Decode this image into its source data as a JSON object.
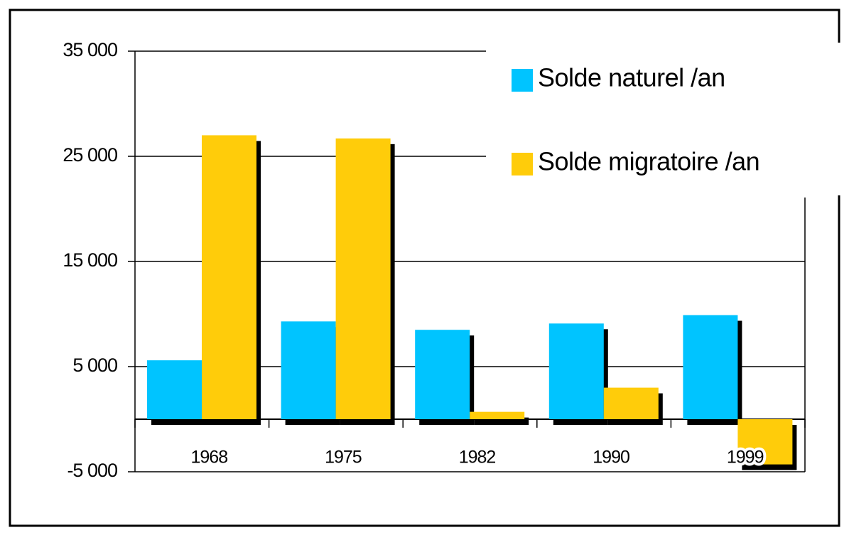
{
  "chart_data": {
    "type": "bar",
    "categories": [
      "1968",
      "1975",
      "1982",
      "1990",
      "1999"
    ],
    "series": [
      {
        "name": "Solde naturel /an",
        "color": "#00c4ff",
        "values": [
          5600,
          9300,
          8500,
          9100,
          9900
        ]
      },
      {
        "name": "Solde migratoire /an",
        "color": "#ffcc0a",
        "values": [
          27000,
          26700,
          700,
          3000,
          -4300
        ]
      }
    ],
    "ylim": [
      -5000,
      35000
    ],
    "yticks": [
      {
        "value": -5000,
        "label": "-5 000"
      },
      {
        "value": 5000,
        "label": "5 000"
      },
      {
        "value": 15000,
        "label": "15 000"
      },
      {
        "value": 25000,
        "label": "25 000"
      },
      {
        "value": 35000,
        "label": "35 000"
      }
    ],
    "grid": true
  }
}
